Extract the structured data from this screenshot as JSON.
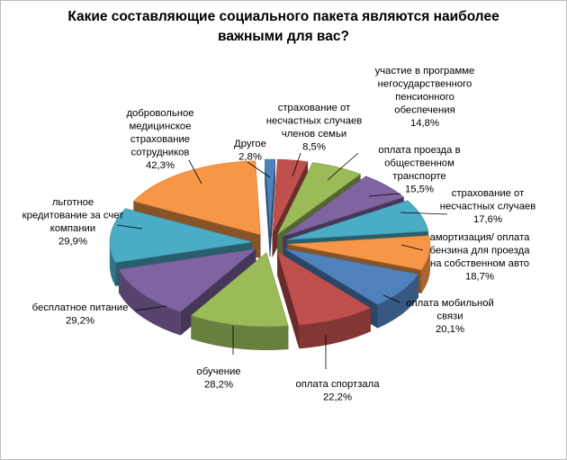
{
  "chart_data": {
    "type": "pie",
    "title": "Какие составляющие социального пакета являются наиболее\nважными для вас?",
    "unit": "%",
    "slices": [
      {
        "label_lines": [
          "Другое",
          "2,8%"
        ],
        "value": 2.8,
        "color": "#4f81bd"
      },
      {
        "label_lines": [
          "страхование от",
          "несчастных случаев",
          "членов семьи",
          "8,5%"
        ],
        "value": 8.5,
        "color": "#c0504d"
      },
      {
        "label_lines": [
          "участие в программе",
          "негосударственного",
          "пенсионного",
          "обеспечения",
          "14,8%"
        ],
        "value": 14.8,
        "color": "#9bbb59"
      },
      {
        "label_lines": [
          "оплата проезда в",
          "общественном",
          "транспорте",
          "15,5%"
        ],
        "value": 15.5,
        "color": "#8064a2"
      },
      {
        "label_lines": [
          "страхование от",
          "несчастных случаев",
          "17,6%"
        ],
        "value": 17.6,
        "color": "#4bacc6"
      },
      {
        "label_lines": [
          "амортизация/ оплата",
          "бензина для проезда",
          "на собственном авто",
          "18,7%"
        ],
        "value": 18.7,
        "color": "#f79646"
      },
      {
        "label_lines": [
          "оплата мобильной",
          "связи",
          "20,1%"
        ],
        "value": 20.1,
        "color": "#4f81bd"
      },
      {
        "label_lines": [
          "оплата спортзала",
          "22,2%"
        ],
        "value": 22.2,
        "color": "#c0504d"
      },
      {
        "label_lines": [
          "обучение",
          "28,2%"
        ],
        "value": 28.2,
        "color": "#9bbb59"
      },
      {
        "label_lines": [
          "бесплатное питание",
          "29,2%"
        ],
        "value": 29.2,
        "color": "#8064a2"
      },
      {
        "label_lines": [
          "льготное",
          "кредитование за счет",
          "компании",
          "29,9%"
        ],
        "value": 29.9,
        "color": "#4bacc6"
      },
      {
        "label_lines": [
          "добровольное",
          "медицинское",
          "страхование",
          "сотрудников",
          "42,3%"
        ],
        "value": 42.3,
        "color": "#f79646"
      }
    ]
  }
}
